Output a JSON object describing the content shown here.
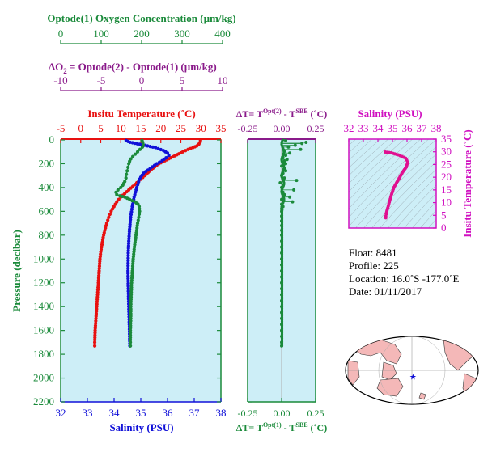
{
  "colors": {
    "oxygen": "#1a8a3a",
    "delta_o2": "#8a1a8a",
    "temperature": "#e81010",
    "salinity": "#1010d8",
    "pressure_axis": "#1a8a3a",
    "dt_upper": "#8a1a8a",
    "dt_lower": "#1a8a3a",
    "ts_axis": "#d010c0",
    "plot_bg": "#cdeef7",
    "ts_curve": "#e01090",
    "land": "#f4b8b8",
    "float_marker": "#1010d8"
  },
  "scales": {
    "oxygen": {
      "title": "Optode(1) Oxygen Concentration (µm/kg)",
      "ticks": [
        "0",
        "100",
        "200",
        "300",
        "400"
      ]
    },
    "delta_o2": {
      "title_prefix": "ΔO",
      "title_sub": "2",
      "title_suffix": " = Optode(2) - Optode(1)    (µm/kg)",
      "ticks": [
        "-10",
        "-5",
        "0",
        "5",
        "10"
      ]
    }
  },
  "chart_data": [
    {
      "type": "line",
      "panel": "profile",
      "title": "Insitu Temperature (˚C)",
      "xlabel": "Salinity (PSU)",
      "ylabel": "Pressure (decibar)",
      "ylim": [
        2200,
        0
      ],
      "y_ticks": [
        "0",
        "200",
        "400",
        "600",
        "800",
        "1000",
        "1200",
        "1400",
        "1600",
        "1800",
        "2000",
        "2200"
      ],
      "temperature_axis": {
        "range": [
          -5,
          35
        ],
        "ticks": [
          "-5",
          "0",
          "5",
          "10",
          "15",
          "20",
          "25",
          "30",
          "35"
        ]
      },
      "salinity_axis": {
        "range": [
          32,
          38
        ],
        "ticks": [
          "32",
          "33",
          "34",
          "35",
          "36",
          "37",
          "38"
        ]
      },
      "oxygen_axis": {
        "range": [
          0,
          400
        ]
      },
      "series": [
        {
          "name": "Insitu Temperature",
          "color_key": "temperature",
          "axis": "temperature",
          "points": [
            [
              29.9,
              5
            ],
            [
              29.8,
              20
            ],
            [
              29.5,
              35
            ],
            [
              29.0,
              50
            ],
            [
              28.0,
              65
            ],
            [
              26.8,
              80
            ],
            [
              25.5,
              100
            ],
            [
              24.0,
              125
            ],
            [
              22.5,
              150
            ],
            [
              21.0,
              175
            ],
            [
              19.5,
              200
            ],
            [
              18.5,
              225
            ],
            [
              17.6,
              250
            ],
            [
              16.8,
              275
            ],
            [
              16.0,
              300
            ],
            [
              15.0,
              330
            ],
            [
              14.0,
              360
            ],
            [
              13.0,
              390
            ],
            [
              12.0,
              420
            ],
            [
              11.0,
              450
            ],
            [
              10.0,
              480
            ],
            [
              9.0,
              520
            ],
            [
              8.3,
              560
            ],
            [
              7.6,
              600
            ],
            [
              7.0,
              650
            ],
            [
              6.5,
              700
            ],
            [
              6.0,
              760
            ],
            [
              5.6,
              820
            ],
            [
              5.3,
              880
            ],
            [
              5.0,
              940
            ],
            [
              4.8,
              1000
            ],
            [
              4.6,
              1100
            ],
            [
              4.4,
              1200
            ],
            [
              4.2,
              1300
            ],
            [
              4.0,
              1400
            ],
            [
              3.8,
              1500
            ],
            [
              3.6,
              1600
            ],
            [
              3.5,
              1700
            ],
            [
              3.5,
              1730
            ]
          ]
        },
        {
          "name": "Salinity",
          "color_key": "salinity",
          "axis": "salinity",
          "points": [
            [
              34.45,
              5
            ],
            [
              34.6,
              20
            ],
            [
              35.05,
              40
            ],
            [
              35.55,
              65
            ],
            [
              35.85,
              90
            ],
            [
              36.0,
              110
            ],
            [
              36.05,
              130
            ],
            [
              35.95,
              150
            ],
            [
              35.8,
              175
            ],
            [
              35.6,
              200
            ],
            [
              35.35,
              240
            ],
            [
              35.1,
              280
            ],
            [
              34.95,
              330
            ],
            [
              34.85,
              400
            ],
            [
              34.75,
              480
            ],
            [
              34.68,
              560
            ],
            [
              34.62,
              650
            ],
            [
              34.58,
              750
            ],
            [
              34.55,
              850
            ],
            [
              34.53,
              950
            ],
            [
              34.52,
              1100
            ],
            [
              34.53,
              1250
            ],
            [
              34.55,
              1400
            ],
            [
              34.57,
              1550
            ],
            [
              34.58,
              1650
            ],
            [
              34.59,
              1730
            ]
          ]
        },
        {
          "name": "Optode(1) Oxygen Concentration",
          "color_key": "oxygen",
          "axis": "oxygen",
          "points": [
            [
              203,
              5
            ],
            [
              205,
              20
            ],
            [
              206,
              40
            ],
            [
              204,
              60
            ],
            [
              198,
              80
            ],
            [
              192,
              100
            ],
            [
              186,
              120
            ],
            [
              180,
              140
            ],
            [
              175,
              160
            ],
            [
              172,
              180
            ],
            [
              170,
              200
            ],
            [
              168,
              230
            ],
            [
              166,
              260
            ],
            [
              164,
              290
            ],
            [
              163,
              320
            ],
            [
              160,
              350
            ],
            [
              155,
              380
            ],
            [
              150,
              400
            ],
            [
              143,
              420
            ],
            [
              138,
              440
            ],
            [
              140,
              460
            ],
            [
              148,
              470
            ],
            [
              160,
              480
            ],
            [
              172,
              500
            ],
            [
              185,
              520
            ],
            [
              193,
              540
            ],
            [
              196,
              560
            ],
            [
              197,
              600
            ],
            [
              195,
              650
            ],
            [
              192,
              700
            ],
            [
              188,
              800
            ],
            [
              184,
              900
            ],
            [
              181,
              1000
            ],
            [
              179,
              1100
            ],
            [
              177,
              1200
            ],
            [
              176,
              1300
            ],
            [
              175,
              1400
            ],
            [
              175,
              1500
            ],
            [
              174,
              1600
            ],
            [
              174,
              1700
            ],
            [
              174,
              1730
            ]
          ]
        }
      ]
    },
    {
      "type": "scatter",
      "panel": "delta_t",
      "title_top": "ΔT= T^Opt(2) - T^SBE (˚C)",
      "title_bottom": "ΔT= T^Opt(1) - T^SBE (˚C)",
      "xlim": [
        -0.25,
        0.25
      ],
      "x_ticks": [
        "-0.25",
        "0.00",
        "0.25"
      ],
      "ylim": [
        2200,
        0
      ],
      "points": [
        [
          0.03,
          5
        ],
        [
          0.18,
          20
        ],
        [
          0.15,
          30
        ],
        [
          0.1,
          45
        ],
        [
          0.05,
          60
        ],
        [
          0.14,
          80
        ],
        [
          0.02,
          95
        ],
        [
          0.06,
          110
        ],
        [
          0.03,
          130
        ],
        [
          0.01,
          150
        ],
        [
          0.04,
          165
        ],
        [
          0.02,
          180
        ],
        [
          0.03,
          200
        ],
        [
          0.0,
          220
        ],
        [
          0.02,
          240
        ],
        [
          0.03,
          260
        ],
        [
          0.01,
          280
        ],
        [
          0.0,
          300
        ],
        [
          0.02,
          320
        ],
        [
          0.11,
          340
        ],
        [
          -0.01,
          360
        ],
        [
          0.01,
          380
        ],
        [
          0.0,
          400
        ],
        [
          0.09,
          420
        ],
        [
          0.01,
          440
        ],
        [
          0.02,
          460
        ],
        [
          0.06,
          480
        ],
        [
          0.0,
          500
        ],
        [
          0.08,
          520
        ],
        [
          0.0,
          540
        ],
        [
          0.01,
          560
        ],
        [
          0.0,
          580
        ],
        [
          0.0,
          600
        ],
        [
          0.0,
          640
        ],
        [
          0.0,
          680
        ],
        [
          0.0,
          720
        ],
        [
          0.0,
          760
        ],
        [
          0.0,
          800
        ],
        [
          0.0,
          850
        ],
        [
          0.0,
          900
        ],
        [
          0.0,
          950
        ],
        [
          0.0,
          1000
        ],
        [
          0.0,
          1050
        ],
        [
          0.0,
          1100
        ],
        [
          0.0,
          1150
        ],
        [
          0.0,
          1200
        ],
        [
          0.0,
          1250
        ],
        [
          0.0,
          1300
        ],
        [
          0.0,
          1350
        ],
        [
          0.0,
          1400
        ],
        [
          0.0,
          1450
        ],
        [
          0.0,
          1500
        ],
        [
          0.0,
          1550
        ],
        [
          0.0,
          1600
        ],
        [
          0.0,
          1650
        ],
        [
          0.0,
          1700
        ],
        [
          0.0,
          1730
        ]
      ]
    },
    {
      "type": "line",
      "panel": "ts",
      "title": "Salinity (PSU)",
      "ylabel": "Insitu Temperature (˚C)",
      "xlim": [
        32,
        38
      ],
      "ylim": [
        0,
        35
      ],
      "x_ticks": [
        "32",
        "33",
        "34",
        "35",
        "36",
        "37",
        "38"
      ],
      "y_ticks": [
        "0",
        "5",
        "10",
        "15",
        "20",
        "25",
        "30",
        "35"
      ],
      "points": [
        [
          34.5,
          29.9
        ],
        [
          34.9,
          29.6
        ],
        [
          35.4,
          28.8
        ],
        [
          35.9,
          27.5
        ],
        [
          36.05,
          26.0
        ],
        [
          35.95,
          24.0
        ],
        [
          35.7,
          22.0
        ],
        [
          35.4,
          19.0
        ],
        [
          35.1,
          16.0
        ],
        [
          34.95,
          13.5
        ],
        [
          34.85,
          11.5
        ],
        [
          34.75,
          9.5
        ],
        [
          34.68,
          8.0
        ],
        [
          34.62,
          6.8
        ],
        [
          34.57,
          5.5
        ],
        [
          34.54,
          4.6
        ],
        [
          34.54,
          4.0
        ],
        [
          34.58,
          3.6
        ]
      ]
    }
  ],
  "info": {
    "float": "Float:  8481",
    "profile": "Profile:  225",
    "location": "Location:  16.0˚S  -177.0˚E",
    "date": "Date:  01/11/2017"
  },
  "map": {
    "marker_lat": -16.0,
    "marker_lon": -177.0,
    "marker_symbol": "★"
  }
}
